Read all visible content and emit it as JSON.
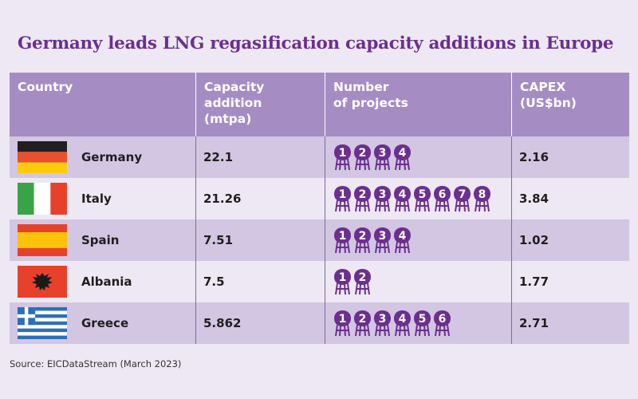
{
  "chart_data": {
    "type": "table",
    "title": "Germany leads LNG regasification capacity additions in Europe",
    "columns": [
      "Country",
      "Capacity\naddition\n(mtpa)",
      "Number\nof projects",
      "CAPEX\n(US$bn)"
    ],
    "rows": [
      {
        "country": "Germany",
        "capacity": "22.1",
        "projects": 4,
        "capex": "2.16"
      },
      {
        "country": "Italy",
        "capacity": "21.26",
        "projects": 8,
        "capex": "3.84"
      },
      {
        "country": "Spain",
        "capacity": "7.51",
        "projects": 4,
        "capex": "1.02"
      },
      {
        "country": "Albania",
        "capacity": "7.5",
        "projects": 2,
        "capex": "1.77"
      },
      {
        "country": "Greece",
        "capacity": "5.862",
        "projects": 6,
        "capex": "2.71"
      }
    ],
    "source": "Source: EICDataStream (March 2023)"
  },
  "colors": {
    "title": "#6b2f8e",
    "header_bg": "#a58dc3",
    "row_alt_bg": "#d2c6e2",
    "pin": "#6b2f8e"
  },
  "icons": {
    "project": "lng-terminal-pin-icon"
  }
}
